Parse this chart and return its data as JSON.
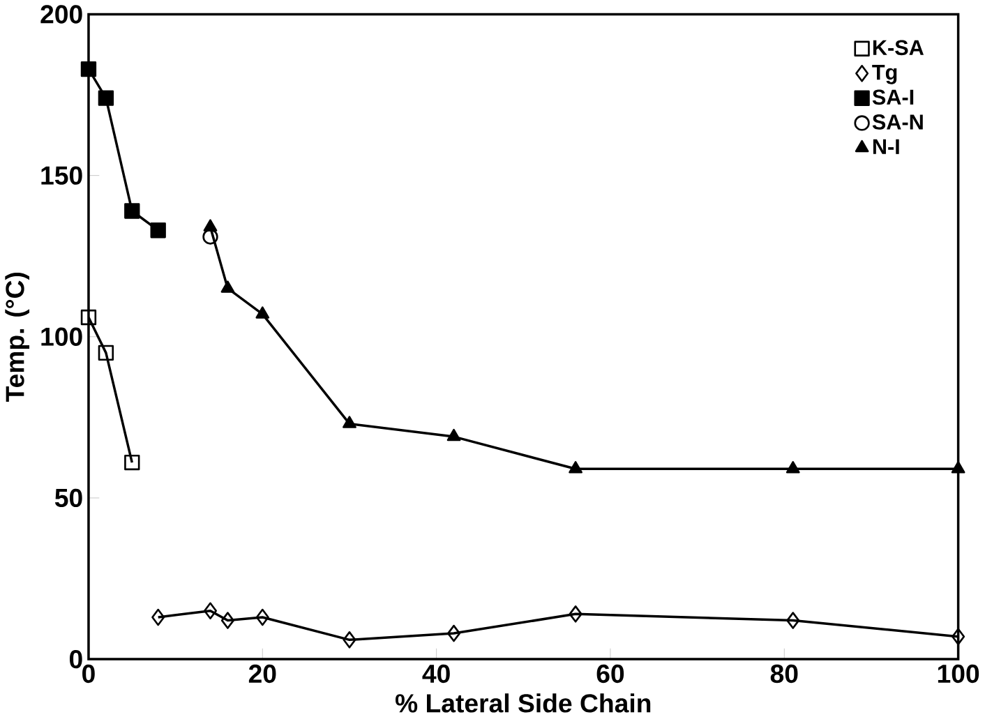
{
  "chart_data": {
    "type": "line",
    "xlabel": "% Lateral Side Chain",
    "ylabel": "Temp. (°C)",
    "xlim": [
      0,
      100
    ],
    "ylim": [
      0,
      200
    ],
    "xticks": [
      0,
      20,
      40,
      60,
      80,
      100
    ],
    "yticks": [
      0,
      50,
      100,
      150,
      200
    ],
    "grid": false,
    "legend": "top right",
    "series": [
      {
        "name": "K-SA",
        "color": "#000000",
        "marker": "square",
        "x": [
          0,
          2,
          5
        ],
        "values": [
          106,
          95,
          61
        ]
      },
      {
        "name": "Tg",
        "color": "#000000",
        "marker": "diamond",
        "x": [
          8,
          14,
          16,
          20,
          30,
          42,
          56,
          81,
          100
        ],
        "values": [
          13,
          15,
          12,
          13,
          6,
          8,
          14,
          12,
          7
        ]
      },
      {
        "name": "SA-I",
        "color": "#000000",
        "marker": "square",
        "x": [
          0,
          2,
          5,
          8
        ],
        "values": [
          183,
          174,
          139,
          133
        ]
      },
      {
        "name": "SA-N",
        "color": "#000000",
        "marker": "circle",
        "type": "scatter",
        "x": [
          14
        ],
        "values": [
          131
        ]
      },
      {
        "name": "N-I",
        "color": "#000000",
        "marker": "triangle",
        "x": [
          14,
          16,
          20,
          30,
          42,
          56,
          81,
          100
        ],
        "values": [
          134,
          115,
          107,
          73,
          69,
          59,
          59,
          59
        ]
      }
    ]
  }
}
